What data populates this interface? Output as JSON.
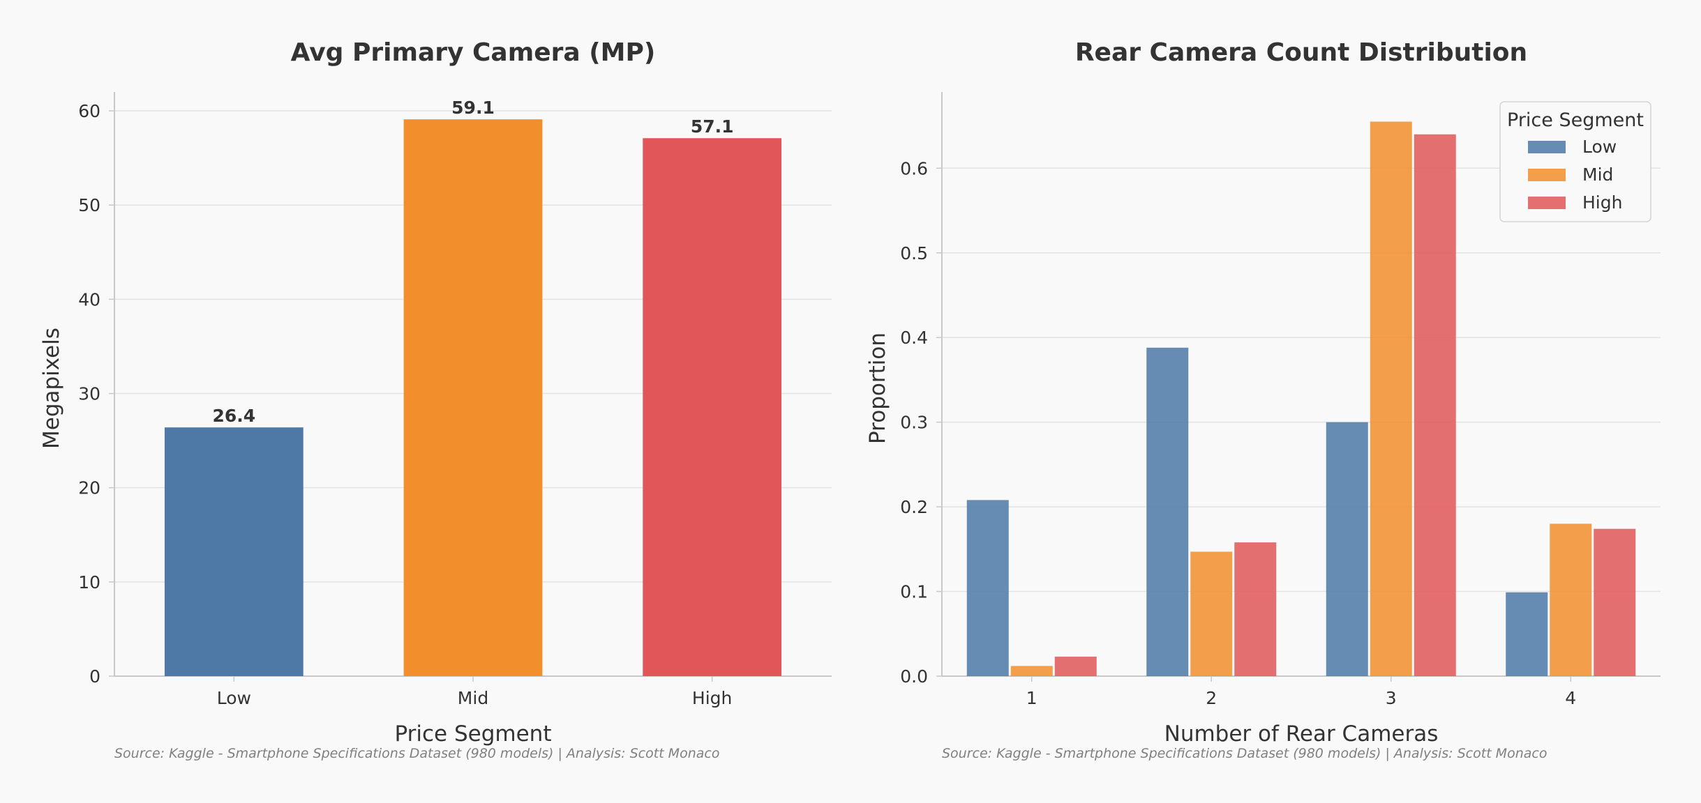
{
  "colors": {
    "low": "#4e79a7",
    "mid": "#f28e2b",
    "high": "#e15759",
    "background": "#f9f9f9",
    "grid": "#e3e3e3",
    "axis": "#c8c8c8",
    "text": "#333333",
    "source_text": "#808080"
  },
  "chart_data": [
    {
      "type": "bar",
      "title": "Avg Primary Camera (MP)",
      "xlabel": "Price Segment",
      "ylabel": "Megapixels",
      "categories": [
        "Low",
        "Mid",
        "High"
      ],
      "values": [
        26.4,
        59.1,
        57.1
      ],
      "value_labels": [
        "26.4",
        "59.1",
        "57.1"
      ],
      "colors": [
        "#4e79a7",
        "#f28e2b",
        "#e15759"
      ],
      "ylim": [
        0,
        62
      ],
      "yticks": [
        0,
        10,
        20,
        30,
        40,
        50,
        60
      ],
      "ytick_labels": [
        "0",
        "10",
        "20",
        "30",
        "40",
        "50",
        "60"
      ],
      "grid": "horizontal",
      "source": "Source: Kaggle - Smartphone Specifications Dataset (980 models) | Analysis: Scott Monaco"
    },
    {
      "type": "bar",
      "title": "Rear Camera Count Distribution",
      "xlabel": "Number of Rear Cameras",
      "ylabel": "Proportion",
      "categories": [
        "1",
        "2",
        "3",
        "4"
      ],
      "series": [
        {
          "name": "Low",
          "values": [
            0.208,
            0.388,
            0.3,
            0.099
          ],
          "color": "#4e79a7"
        },
        {
          "name": "Mid",
          "values": [
            0.012,
            0.147,
            0.655,
            0.18
          ],
          "color": "#f28e2b"
        },
        {
          "name": "High",
          "values": [
            0.023,
            0.158,
            0.64,
            0.174
          ],
          "color": "#e15759"
        }
      ],
      "ylim": [
        0,
        0.69
      ],
      "yticks": [
        0.0,
        0.1,
        0.2,
        0.3,
        0.4,
        0.5,
        0.6
      ],
      "ytick_labels": [
        "0.0",
        "0.1",
        "0.2",
        "0.3",
        "0.4",
        "0.5",
        "0.6"
      ],
      "grid": "horizontal",
      "legend": {
        "title": "Price Segment",
        "placement": "top-right"
      },
      "source": "Source: Kaggle - Smartphone Specifications Dataset (980 models) | Analysis: Scott Monaco"
    }
  ]
}
